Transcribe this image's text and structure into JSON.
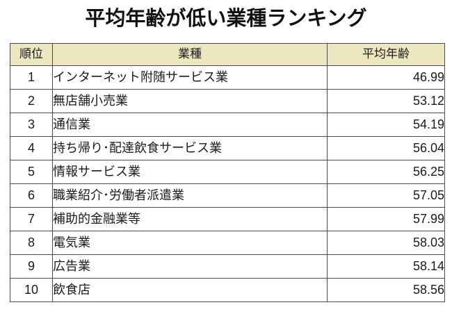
{
  "title": "平均年齢が低い業種ランキング",
  "table": {
    "headers": {
      "rank": "順位",
      "industry": "業種",
      "age": "平均年齢"
    },
    "rows": [
      {
        "rank": "1",
        "industry": "インターネット附随サービス業",
        "age": "46.99"
      },
      {
        "rank": "2",
        "industry": "無店舗小売業",
        "age": "53.12"
      },
      {
        "rank": "3",
        "industry": "通信業",
        "age": "54.19"
      },
      {
        "rank": "4",
        "industry": "持ち帰り･配達飲食サービス業",
        "age": "56.04"
      },
      {
        "rank": "5",
        "industry": "情報サービス業",
        "age": "56.25"
      },
      {
        "rank": "6",
        "industry": "職業紹介･労働者派遣業",
        "age": "57.05"
      },
      {
        "rank": "7",
        "industry": "補助的金融業等",
        "age": "57.99"
      },
      {
        "rank": "8",
        "industry": "電気業",
        "age": "58.03"
      },
      {
        "rank": "9",
        "industry": "広告業",
        "age": "58.14"
      },
      {
        "rank": "10",
        "industry": "飲食店",
        "age": "58.56"
      }
    ]
  },
  "colors": {
    "header_background": "#ece7bf",
    "border": "#4a4a4a"
  }
}
